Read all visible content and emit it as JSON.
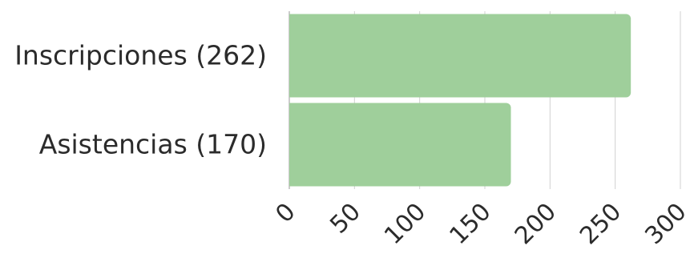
{
  "chart_data": {
    "type": "bar",
    "orientation": "horizontal",
    "categories": [
      "Inscripciones (262)",
      "Asistencias (170)"
    ],
    "values": [
      262,
      170
    ],
    "xlim": [
      0,
      300
    ],
    "x_ticks": [
      "0",
      "50",
      "100",
      "150",
      "200",
      "250",
      "300"
    ],
    "grid": true,
    "bar_color": "#9fcf9b",
    "legend": false
  }
}
